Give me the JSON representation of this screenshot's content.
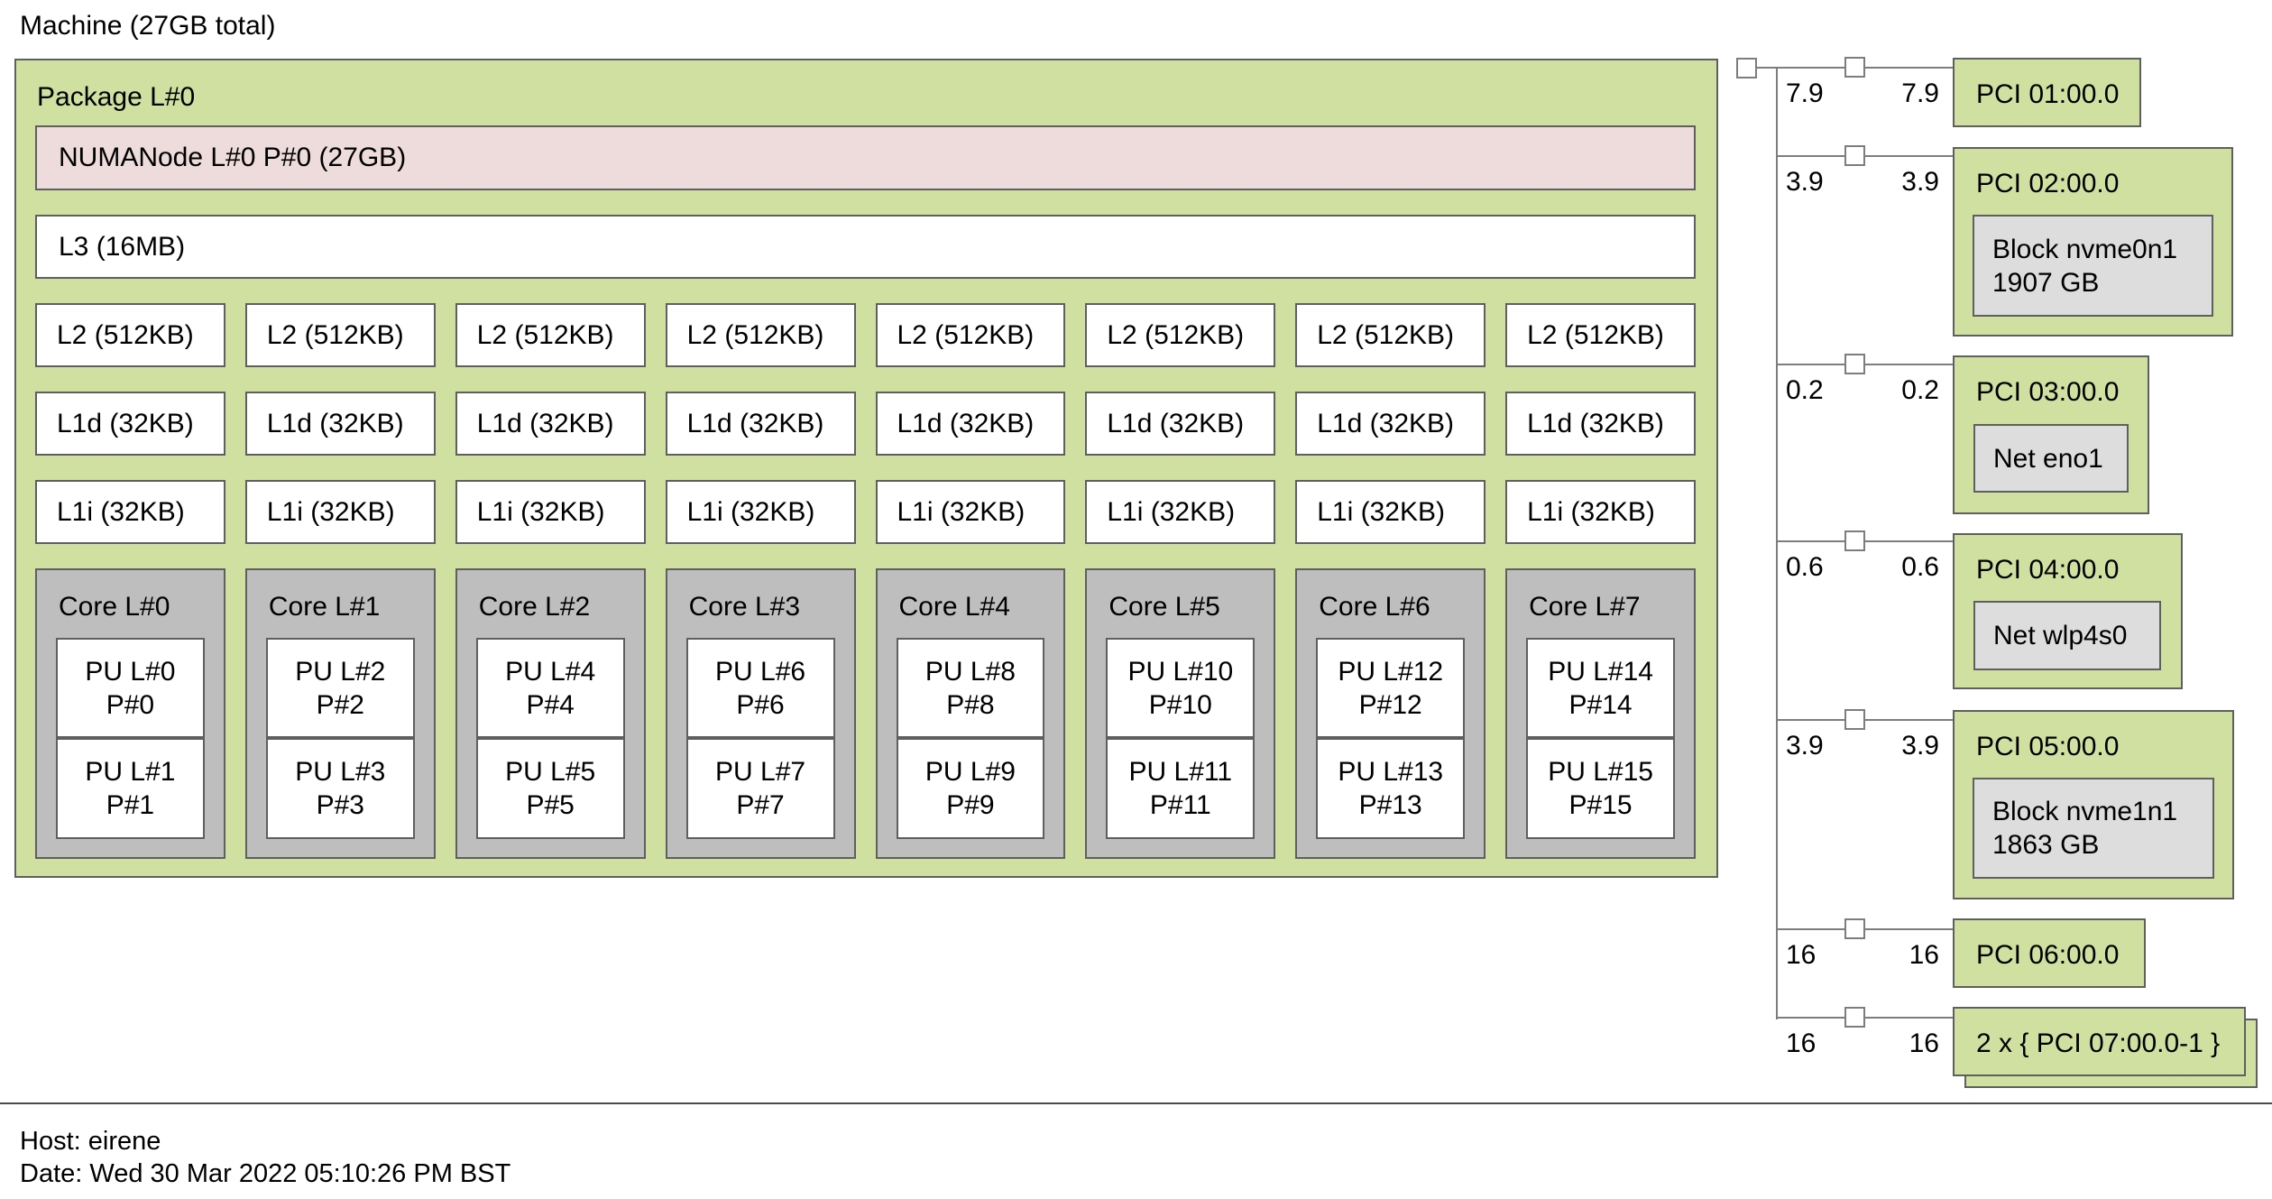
{
  "title": "Machine (27GB total)",
  "package": {
    "label": "Package L#0",
    "numanode": "NUMANode L#0 P#0 (27GB)",
    "l3": "L3 (16MB)",
    "l2": [
      "L2 (512KB)",
      "L2 (512KB)",
      "L2 (512KB)",
      "L2 (512KB)",
      "L2 (512KB)",
      "L2 (512KB)",
      "L2 (512KB)",
      "L2 (512KB)"
    ],
    "l1d": [
      "L1d (32KB)",
      "L1d (32KB)",
      "L1d (32KB)",
      "L1d (32KB)",
      "L1d (32KB)",
      "L1d (32KB)",
      "L1d (32KB)",
      "L1d (32KB)"
    ],
    "l1i": [
      "L1i (32KB)",
      "L1i (32KB)",
      "L1i (32KB)",
      "L1i (32KB)",
      "L1i (32KB)",
      "L1i (32KB)",
      "L1i (32KB)",
      "L1i (32KB)"
    ],
    "cores": [
      {
        "label": "Core L#0",
        "pus": [
          {
            "l": "PU L#0",
            "p": "P#0"
          },
          {
            "l": "PU L#1",
            "p": "P#1"
          }
        ]
      },
      {
        "label": "Core L#1",
        "pus": [
          {
            "l": "PU L#2",
            "p": "P#2"
          },
          {
            "l": "PU L#3",
            "p": "P#3"
          }
        ]
      },
      {
        "label": "Core L#2",
        "pus": [
          {
            "l": "PU L#4",
            "p": "P#4"
          },
          {
            "l": "PU L#5",
            "p": "P#5"
          }
        ]
      },
      {
        "label": "Core L#3",
        "pus": [
          {
            "l": "PU L#6",
            "p": "P#6"
          },
          {
            "l": "PU L#7",
            "p": "P#7"
          }
        ]
      },
      {
        "label": "Core L#4",
        "pus": [
          {
            "l": "PU L#8",
            "p": "P#8"
          },
          {
            "l": "PU L#9",
            "p": "P#9"
          }
        ]
      },
      {
        "label": "Core L#5",
        "pus": [
          {
            "l": "PU L#10",
            "p": "P#10"
          },
          {
            "l": "PU L#11",
            "p": "P#11"
          }
        ]
      },
      {
        "label": "Core L#6",
        "pus": [
          {
            "l": "PU L#12",
            "p": "P#12"
          },
          {
            "l": "PU L#13",
            "p": "P#13"
          }
        ]
      },
      {
        "label": "Core L#7",
        "pus": [
          {
            "l": "PU L#14",
            "p": "P#14"
          },
          {
            "l": "PU L#15",
            "p": "P#15"
          }
        ]
      }
    ]
  },
  "pci_tree": {
    "branches": [
      {
        "label": "PCI 01:00.0",
        "speed_left": "7.9",
        "speed_right": "7.9",
        "devices": []
      },
      {
        "label": "PCI 02:00.0",
        "speed_left": "3.9",
        "speed_right": "3.9",
        "devices": [
          "Block nvme0n1",
          "1907 GB"
        ]
      },
      {
        "label": "PCI 03:00.0",
        "speed_left": "0.2",
        "speed_right": "0.2",
        "devices": [
          "Net eno1"
        ]
      },
      {
        "label": "PCI 04:00.0",
        "speed_left": "0.6",
        "speed_right": "0.6",
        "devices": [
          "Net wlp4s0"
        ]
      },
      {
        "label": "PCI 05:00.0",
        "speed_left": "3.9",
        "speed_right": "3.9",
        "devices": [
          "Block nvme1n1",
          "1863 GB"
        ]
      },
      {
        "label": "PCI 06:00.0",
        "speed_left": "16",
        "speed_right": "16",
        "devices": []
      },
      {
        "label": "2 x { PCI 07:00.0-1 }",
        "speed_left": "16",
        "speed_right": "16",
        "devices": [],
        "stacked": true
      }
    ]
  },
  "footer": {
    "host": "Host: eirene",
    "date": "Date: Wed 30 Mar 2022 05:10:26 PM BST"
  },
  "colors": {
    "package_green": "#d0e0a0",
    "numa_pink": "#eedcdc",
    "core_gray": "#bebebe",
    "device_gray": "#dddddd"
  }
}
